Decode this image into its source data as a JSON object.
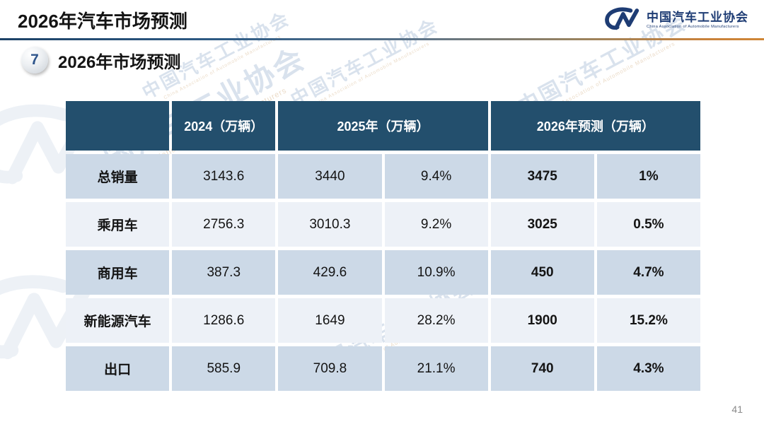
{
  "header": {
    "title": "2026年汽车市场预测",
    "logo": {
      "org_cn": "中国汽车工业协会",
      "org_en": "China Association of Automobile Manufacturers"
    }
  },
  "section": {
    "number": "7",
    "title": "2026年市场预测"
  },
  "table": {
    "column_headers": {
      "col_2024": "2024（万辆）",
      "col_2025": "2025年（万辆）",
      "col_2026": "2026年预测（万辆）"
    },
    "rows": [
      {
        "label": "总销量",
        "y2024": "3143.6",
        "y2025": "3440",
        "y2025_growth": "9.4%",
        "y2026": "3475",
        "y2026_growth": "1%"
      },
      {
        "label": "乘用车",
        "y2024": "2756.3",
        "y2025": "3010.3",
        "y2025_growth": "9.2%",
        "y2026": "3025",
        "y2026_growth": "0.5%"
      },
      {
        "label": "商用车",
        "y2024": "387.3",
        "y2025": "429.6",
        "y2025_growth": "10.9%",
        "y2026": "450",
        "y2026_growth": "4.7%"
      },
      {
        "label": "新能源汽车",
        "y2024": "1286.6",
        "y2025": "1649",
        "y2025_growth": "28.2%",
        "y2026": "1900",
        "y2026_growth": "15.2%"
      },
      {
        "label": "出口",
        "y2024": "585.9",
        "y2025": "709.8",
        "y2025_growth": "21.1%",
        "y2026": "740",
        "y2026_growth": "4.3%"
      }
    ]
  },
  "footer": {
    "page_number": "41"
  },
  "watermark": {
    "text_cn": "中国汽车工业协会",
    "text_en": "China Association of Automobile Manufacturers"
  },
  "colors": {
    "header_bg": "#234F6D",
    "row_alt_dark": "#CCD9E7",
    "row_alt_light": "#EDF1F7",
    "logo_blue": "#1E3C74",
    "divider_blue": "#1C4166",
    "divider_orange": "#C8813B",
    "title_text": "#141414",
    "page_number_text": "#8A8A8A"
  }
}
